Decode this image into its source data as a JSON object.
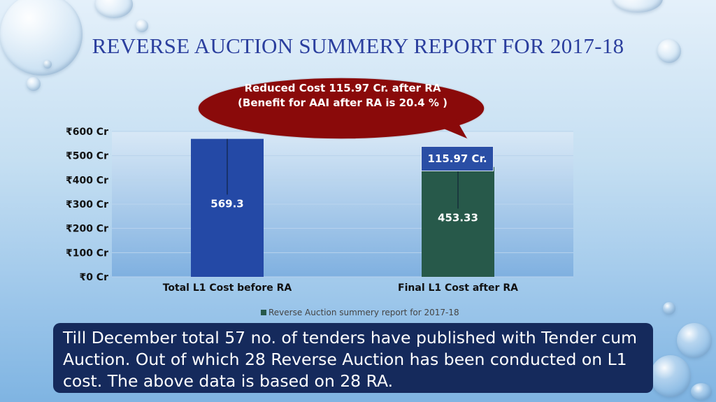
{
  "title": "REVERSE AUCTION SUMMERY REPORT FOR 2017-18",
  "chart_data": {
    "type": "bar",
    "categories": [
      "Total L1 Cost before RA",
      "Final L1 Cost after RA"
    ],
    "series": [
      {
        "name": "Reverse Auction summery report for 2017-18",
        "values": [
          569.3,
          453.33
        ],
        "data_labels": [
          "569.3",
          "453.33"
        ]
      }
    ],
    "bar_colors": [
      "#2449a6",
      "#27594a"
    ],
    "ylim": [
      0,
      600
    ],
    "y_ticks": [
      "₹0 Cr",
      "₹100 Cr",
      "₹200 Cr",
      "₹300 Cr",
      "₹400 Cr",
      "₹500 Cr",
      "₹600 Cr"
    ],
    "grid": true,
    "legend_position": "bottom",
    "reduced_amount_label": "115.97 Cr.",
    "reduced_amount": 115.97,
    "callout": "Reduced Cost 115.97 Cr. after RA\n(Benefit for AAI after RA is 20.4 % )"
  },
  "note": "Till December total 57 no. of tenders have published with Tender cum Auction. Out of which 28 Reverse Auction has been conducted on L1 cost. The above data is based on 28 RA."
}
